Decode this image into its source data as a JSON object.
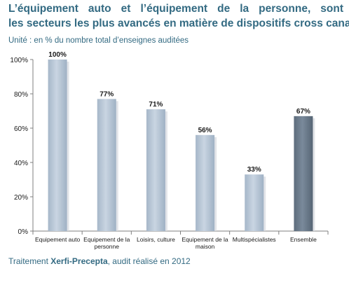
{
  "title_line1": "L’équipement auto et l’équipement de la personne, sont",
  "title_line2": "les secteurs les plus avancés en matière de dispositifs cross canal",
  "unit": "Unité : en % du nombre total d’enseignes auditées",
  "source": {
    "prefix": "Traitement ",
    "bold": "Xerfi-Precepta",
    "suffix": ", audit réalisé en 2012"
  },
  "chart_data": {
    "type": "bar",
    "title": "",
    "xlabel": "",
    "ylabel": "",
    "ylim": [
      0,
      100
    ],
    "yticks": [
      0,
      20,
      40,
      60,
      80,
      100
    ],
    "ytick_labels": [
      "0%",
      "20%",
      "40%",
      "60%",
      "80%",
      "100%"
    ],
    "grid": false,
    "categories": [
      [
        "Equipement auto"
      ],
      [
        "Equipement de la",
        "personne"
      ],
      [
        "Loisirs, culture"
      ],
      [
        "Equipement de la",
        "maison"
      ],
      [
        "Multispécialistes"
      ],
      [
        "Ensemble"
      ]
    ],
    "values": [
      100,
      77,
      71,
      56,
      33,
      67
    ],
    "data_labels": [
      "100%",
      "77%",
      "71%",
      "56%",
      "33%",
      "67%"
    ],
    "colors": {
      "bar": "#b7c6d6",
      "bar_highlight": "#6b7b8c",
      "axis": "#7f7f7f",
      "text": "#1a1a1a"
    },
    "highlight_index": 5
  }
}
